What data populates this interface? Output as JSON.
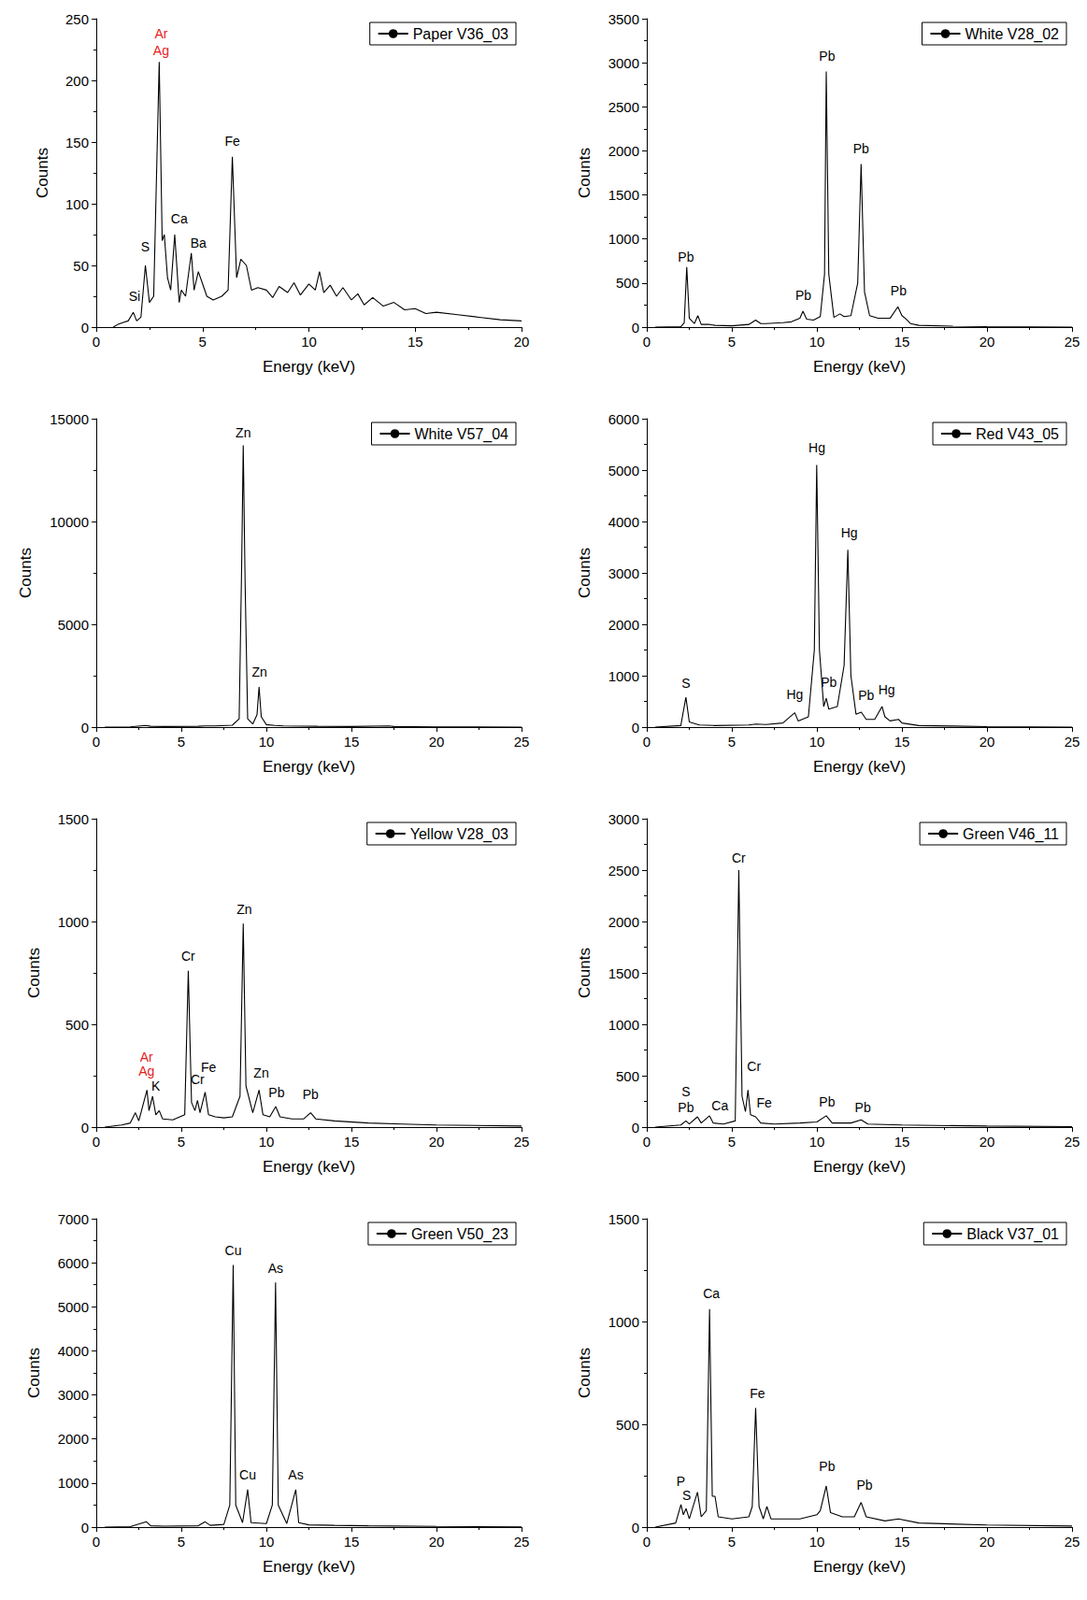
{
  "chart_data": [
    {
      "type": "line",
      "x_label": "Energy (keV)",
      "y_label": "Counts",
      "grid": false,
      "legend": "upper right",
      "xlim": [
        0,
        20
      ],
      "xticks": [
        0,
        5,
        10,
        15,
        20
      ],
      "ylim": [
        0,
        250
      ],
      "yticks": [
        0,
        50,
        100,
        150,
        200,
        250
      ],
      "series": [
        {
          "name": "Paper V36_03",
          "color": "#000000",
          "x": [
            0.8,
            1.0,
            1.3,
            1.5,
            1.74,
            1.9,
            2.1,
            2.31,
            2.5,
            2.7,
            2.96,
            3.1,
            3.2,
            3.35,
            3.5,
            3.69,
            3.9,
            4.0,
            4.2,
            4.47,
            4.6,
            4.8,
            5.0,
            5.2,
            5.5,
            5.9,
            6.2,
            6.4,
            6.6,
            6.8,
            7.06,
            7.3,
            7.6,
            8.0,
            8.3,
            8.6,
            9.0,
            9.3,
            9.6,
            10.0,
            10.3,
            10.5,
            10.7,
            11.0,
            11.3,
            11.6,
            12.0,
            12.3,
            12.6,
            13.0,
            13.5,
            14.0,
            14.5,
            15.0,
            15.5,
            16.0,
            17.0,
            18.0,
            19.0,
            20.0
          ],
          "values": [
            0,
            2,
            4,
            5,
            12,
            5,
            8,
            50,
            20,
            25,
            215,
            70,
            75,
            40,
            30,
            75,
            20,
            30,
            25,
            60,
            30,
            45,
            35,
            25,
            22,
            25,
            30,
            138,
            40,
            55,
            50,
            30,
            32,
            30,
            24,
            33,
            28,
            36,
            26,
            35,
            30,
            45,
            28,
            34,
            25,
            32,
            22,
            27,
            18,
            24,
            17,
            20,
            14,
            15,
            11,
            12,
            10,
            8,
            6,
            5
          ]
        }
      ],
      "annotations": [
        {
          "text": "Si",
          "x": 1.8,
          "y": 25
        },
        {
          "text": "S",
          "x": 2.3,
          "y": 65
        },
        {
          "text": "Ar",
          "x": 3.05,
          "y": 238,
          "color": "#e8201a"
        },
        {
          "text": "Ag",
          "x": 3.05,
          "y": 224,
          "color": "#e8201a"
        },
        {
          "text": "Ca",
          "x": 3.9,
          "y": 88
        },
        {
          "text": "Ba",
          "x": 4.8,
          "y": 68
        },
        {
          "text": "Fe",
          "x": 6.4,
          "y": 151
        }
      ]
    },
    {
      "type": "line",
      "x_label": "Energy (keV)",
      "y_label": "Counts",
      "grid": false,
      "legend": "upper right",
      "xlim": [
        0,
        25
      ],
      "xticks": [
        0,
        5,
        10,
        15,
        20,
        25
      ],
      "ylim": [
        0,
        3500
      ],
      "yticks": [
        0,
        500,
        1000,
        1500,
        2000,
        2500,
        3000,
        3500
      ],
      "series": [
        {
          "name": "White V28_02",
          "color": "#000000",
          "x": [
            0.5,
            2.0,
            2.2,
            2.35,
            2.5,
            2.8,
            3.0,
            3.2,
            3.7,
            4.0,
            5.0,
            6.0,
            6.4,
            6.7,
            7.0,
            7.5,
            8.0,
            8.5,
            9.0,
            9.18,
            9.4,
            9.8,
            10.2,
            10.45,
            10.55,
            10.7,
            11.0,
            11.35,
            11.6,
            12.0,
            12.4,
            12.6,
            12.8,
            13.1,
            13.6,
            14.3,
            14.76,
            15.0,
            15.2,
            15.5,
            16.0,
            18.0,
            20.0,
            25.0
          ],
          "values": [
            0,
            5,
            50,
            680,
            100,
            40,
            130,
            30,
            30,
            20,
            15,
            30,
            80,
            40,
            40,
            45,
            50,
            60,
            100,
            180,
            90,
            80,
            120,
            600,
            2900,
            600,
            110,
            150,
            120,
            130,
            500,
            1850,
            400,
            130,
            100,
            100,
            230,
            130,
            100,
            40,
            20,
            10,
            5,
            0
          ]
        }
      ],
      "annotations": [
        {
          "text": "Pb",
          "x": 2.3,
          "y": 800
        },
        {
          "text": "Pb",
          "x": 9.2,
          "y": 360
        },
        {
          "text": "Pb",
          "x": 10.6,
          "y": 3080
        },
        {
          "text": "Pb",
          "x": 12.6,
          "y": 2030
        },
        {
          "text": "Pb",
          "x": 14.8,
          "y": 410
        }
      ]
    },
    {
      "type": "line",
      "x_label": "Energy (keV)",
      "y_label": "Counts",
      "grid": false,
      "legend": "upper right",
      "xlim": [
        0,
        25
      ],
      "xticks": [
        0,
        5,
        10,
        15,
        20,
        25
      ],
      "ylim": [
        0,
        15000
      ],
      "yticks": [
        0,
        5000,
        10000,
        15000
      ],
      "series": [
        {
          "name": "White V57_04",
          "color": "#000000",
          "x": [
            0.5,
            2.0,
            2.9,
            3.2,
            4.0,
            6.0,
            6.4,
            7.0,
            8.0,
            8.4,
            8.55,
            8.64,
            8.75,
            8.9,
            9.2,
            9.45,
            9.57,
            9.7,
            10.0,
            10.5,
            11.0,
            13.0,
            15.0,
            17.2,
            17.5,
            20.0,
            25.0
          ],
          "values": [
            0,
            10,
            80,
            40,
            30,
            40,
            60,
            60,
            90,
            400,
            8000,
            13700,
            7000,
            400,
            150,
            600,
            1950,
            500,
            120,
            80,
            60,
            40,
            30,
            60,
            30,
            10,
            0
          ]
        }
      ],
      "annotations": [
        {
          "text": "Zn",
          "x": 8.64,
          "y": 14300
        },
        {
          "text": "Zn",
          "x": 9.6,
          "y": 2700
        }
      ]
    },
    {
      "type": "line",
      "x_label": "Energy (keV)",
      "y_label": "Counts",
      "grid": false,
      "legend": "upper right",
      "xlim": [
        0,
        25
      ],
      "xticks": [
        0,
        5,
        10,
        15,
        20,
        25
      ],
      "ylim": [
        0,
        6000
      ],
      "yticks": [
        0,
        1000,
        2000,
        3000,
        4000,
        5000,
        6000
      ],
      "series": [
        {
          "name": "Red V43_05",
          "color": "#000000",
          "x": [
            0.5,
            2.0,
            2.3,
            2.5,
            2.9,
            3.1,
            4.0,
            6.0,
            6.4,
            7.0,
            8.0,
            8.7,
            8.9,
            9.5,
            9.85,
            9.99,
            10.15,
            10.4,
            10.55,
            10.7,
            11.2,
            11.6,
            11.82,
            12.0,
            12.3,
            12.61,
            12.9,
            13.4,
            13.83,
            14.0,
            14.3,
            14.8,
            15.0,
            16.0,
            18.0,
            20.0,
            25.0
          ],
          "values": [
            0,
            30,
            580,
            100,
            60,
            40,
            30,
            40,
            60,
            50,
            80,
            280,
            120,
            200,
            1500,
            5100,
            1500,
            400,
            560,
            350,
            400,
            1200,
            3450,
            1000,
            250,
            290,
            150,
            150,
            400,
            200,
            120,
            150,
            80,
            30,
            20,
            10,
            0
          ]
        }
      ],
      "annotations": [
        {
          "text": "S",
          "x": 2.3,
          "y": 850
        },
        {
          "text": "Hg",
          "x": 8.7,
          "y": 640
        },
        {
          "text": "Hg",
          "x": 10.0,
          "y": 5430
        },
        {
          "text": "Pb",
          "x": 10.7,
          "y": 880
        },
        {
          "text": "Hg",
          "x": 11.9,
          "y": 3780
        },
        {
          "text": "Pb",
          "x": 12.9,
          "y": 620
        },
        {
          "text": "Hg",
          "x": 14.1,
          "y": 720
        }
      ]
    },
    {
      "type": "line",
      "x_label": "Energy (keV)",
      "y_label": "Counts",
      "grid": false,
      "legend": "upper right",
      "xlim": [
        0,
        25
      ],
      "xticks": [
        0,
        5,
        10,
        15,
        20,
        25
      ],
      "ylim": [
        0,
        1500
      ],
      "yticks": [
        0,
        500,
        1000,
        1500
      ],
      "series": [
        {
          "name": "Yellow V28_03",
          "color": "#000000",
          "x": [
            0.5,
            1.5,
            2.0,
            2.3,
            2.5,
            2.98,
            3.1,
            3.31,
            3.5,
            3.7,
            3.9,
            4.5,
            5.2,
            5.41,
            5.6,
            5.8,
            5.95,
            6.1,
            6.4,
            6.6,
            7.0,
            7.5,
            8.0,
            8.45,
            8.64,
            8.8,
            9.2,
            9.57,
            9.8,
            10.2,
            10.55,
            10.8,
            11.5,
            12.2,
            12.6,
            12.9,
            14.0,
            16.0,
            18.0,
            20.0,
            25.0
          ],
          "values": [
            0,
            10,
            20,
            70,
            30,
            180,
            80,
            150,
            60,
            80,
            40,
            35,
            60,
            760,
            120,
            80,
            130,
            70,
            170,
            60,
            50,
            45,
            50,
            150,
            990,
            200,
            70,
            180,
            60,
            50,
            100,
            50,
            40,
            40,
            70,
            40,
            30,
            20,
            15,
            10,
            5
          ]
        }
      ],
      "annotations": [
        {
          "text": "Ar",
          "x": 2.95,
          "y": 340,
          "color": "#e8201a"
        },
        {
          "text": "Ag",
          "x": 2.95,
          "y": 275,
          "color": "#e8201a"
        },
        {
          "text": "K",
          "x": 3.5,
          "y": 200
        },
        {
          "text": "Cr",
          "x": 5.4,
          "y": 830
        },
        {
          "text": "Cr",
          "x": 5.95,
          "y": 234
        },
        {
          "text": "Fe",
          "x": 6.6,
          "y": 293
        },
        {
          "text": "Zn",
          "x": 8.7,
          "y": 1060
        },
        {
          "text": "Zn",
          "x": 9.7,
          "y": 263
        },
        {
          "text": "Pb",
          "x": 10.6,
          "y": 170
        },
        {
          "text": "Pb",
          "x": 12.6,
          "y": 160
        }
      ]
    },
    {
      "type": "line",
      "x_label": "Energy (keV)",
      "y_label": "Counts",
      "grid": false,
      "legend": "upper right",
      "xlim": [
        0,
        25
      ],
      "xticks": [
        0,
        5,
        10,
        15,
        20,
        25
      ],
      "ylim": [
        0,
        3000
      ],
      "yticks": [
        0,
        500,
        1000,
        1500,
        2000,
        2500,
        3000
      ],
      "series": [
        {
          "name": "Green V46_11",
          "color": "#000000",
          "x": [
            0.5,
            2.0,
            2.3,
            2.5,
            2.98,
            3.2,
            3.69,
            3.9,
            4.5,
            5.2,
            5.41,
            5.6,
            5.8,
            5.95,
            6.1,
            6.4,
            6.7,
            7.5,
            9.0,
            10.0,
            10.55,
            10.9,
            12.0,
            12.6,
            13.0,
            15.0,
            20.0,
            25.0
          ],
          "values": [
            0,
            20,
            60,
            30,
            100,
            40,
            110,
            40,
            30,
            60,
            2500,
            300,
            150,
            360,
            120,
            100,
            40,
            30,
            40,
            50,
            110,
            40,
            40,
            70,
            30,
            20,
            10,
            5
          ]
        }
      ],
      "annotations": [
        {
          "text": "S",
          "x": 2.3,
          "y": 346
        },
        {
          "text": "Pb",
          "x": 2.3,
          "y": 192
        },
        {
          "text": "Ca",
          "x": 4.3,
          "y": 210
        },
        {
          "text": "Cr",
          "x": 5.4,
          "y": 2620
        },
        {
          "text": "Cr",
          "x": 6.3,
          "y": 590
        },
        {
          "text": "Fe",
          "x": 6.9,
          "y": 240
        },
        {
          "text": "Pb",
          "x": 10.6,
          "y": 250
        },
        {
          "text": "Pb",
          "x": 12.7,
          "y": 195
        }
      ]
    },
    {
      "type": "line",
      "x_label": "Energy (keV)",
      "y_label": "Counts",
      "grid": false,
      "legend": "upper right",
      "xlim": [
        0,
        25
      ],
      "xticks": [
        0,
        5,
        10,
        15,
        20,
        25
      ],
      "ylim": [
        0,
        7000
      ],
      "yticks": [
        0,
        1000,
        2000,
        3000,
        4000,
        5000,
        6000,
        7000
      ],
      "series": [
        {
          "name": "Green V50_23",
          "color": "#000000",
          "x": [
            0.5,
            2.0,
            2.95,
            3.2,
            4.0,
            6.0,
            6.4,
            6.7,
            7.5,
            7.85,
            8.05,
            8.2,
            8.6,
            8.9,
            9.1,
            10.0,
            10.35,
            10.54,
            10.7,
            11.2,
            11.73,
            11.9,
            12.5,
            14.0,
            16.0,
            20.0,
            25.0
          ],
          "values": [
            0,
            10,
            120,
            30,
            20,
            30,
            120,
            40,
            60,
            500,
            5950,
            500,
            100,
            850,
            100,
            80,
            500,
            5550,
            500,
            80,
            850,
            100,
            50,
            40,
            30,
            15,
            5
          ]
        }
      ],
      "annotations": [
        {
          "text": "Cu",
          "x": 8.05,
          "y": 6280
        },
        {
          "text": "Cu",
          "x": 8.9,
          "y": 1180
        },
        {
          "text": "As",
          "x": 10.54,
          "y": 5880
        },
        {
          "text": "As",
          "x": 11.73,
          "y": 1180
        }
      ]
    },
    {
      "type": "line",
      "x_label": "Energy (keV)",
      "y_label": "Counts",
      "grid": false,
      "legend": "upper right",
      "xlim": [
        0,
        25
      ],
      "xticks": [
        0,
        5,
        10,
        15,
        20,
        25
      ],
      "ylim": [
        0,
        1500
      ],
      "yticks": [
        0,
        500,
        1000,
        1500
      ],
      "series": [
        {
          "name": "Black V37_01",
          "color": "#000000",
          "x": [
            0.5,
            1.7,
            2.01,
            2.15,
            2.31,
            2.5,
            2.98,
            3.2,
            3.5,
            3.69,
            3.85,
            4.01,
            4.2,
            5.0,
            6.0,
            6.2,
            6.4,
            6.6,
            6.85,
            7.06,
            7.3,
            8.0,
            9.0,
            10.0,
            10.2,
            10.55,
            10.8,
            11.5,
            12.2,
            12.6,
            12.9,
            14.0,
            14.8,
            16.0,
            20.0,
            25.0
          ],
          "values": [
            0,
            20,
            110,
            60,
            90,
            40,
            170,
            50,
            80,
            1060,
            150,
            150,
            50,
            40,
            50,
            100,
            580,
            100,
            40,
            100,
            40,
            40,
            40,
            60,
            80,
            200,
            70,
            50,
            50,
            120,
            50,
            30,
            40,
            20,
            10,
            5
          ]
        }
      ],
      "annotations": [
        {
          "text": "P",
          "x": 2.0,
          "y": 225
        },
        {
          "text": "S",
          "x": 2.35,
          "y": 155
        },
        {
          "text": "Ca",
          "x": 3.8,
          "y": 1135
        },
        {
          "text": "Fe",
          "x": 6.5,
          "y": 650
        },
        {
          "text": "Pb",
          "x": 10.6,
          "y": 295
        },
        {
          "text": "Pb",
          "x": 12.8,
          "y": 205
        }
      ]
    }
  ]
}
